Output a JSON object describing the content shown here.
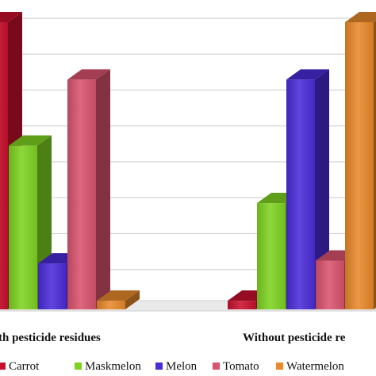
{
  "chart_data": {
    "type": "bar",
    "style": "3d-clustered-column",
    "categories": [
      "With pesticide residues",
      "Without pesticide residues"
    ],
    "visible_category_labels": [
      "th pesticide residues",
      "Without pesticide re"
    ],
    "series": [
      {
        "name": "Carrot",
        "color": "#c8102e",
        "values": [
          100,
          3
        ]
      },
      {
        "name": "Maskmelon",
        "color": "#7ed321",
        "values": [
          57,
          37
        ]
      },
      {
        "name": "Melon",
        "color": "#4a2bd8",
        "values": [
          16,
          80
        ]
      },
      {
        "name": "Tomato",
        "color": "#d9536e",
        "values": [
          80,
          17
        ]
      },
      {
        "name": "Watermelon",
        "color": "#e8892a",
        "values": [
          3,
          100
        ]
      }
    ],
    "grid": true,
    "legend": "bottom",
    "legend_labels": [
      "Carrot",
      "Maskmelon",
      "Melon",
      "Tomato",
      "Watermelon"
    ]
  }
}
